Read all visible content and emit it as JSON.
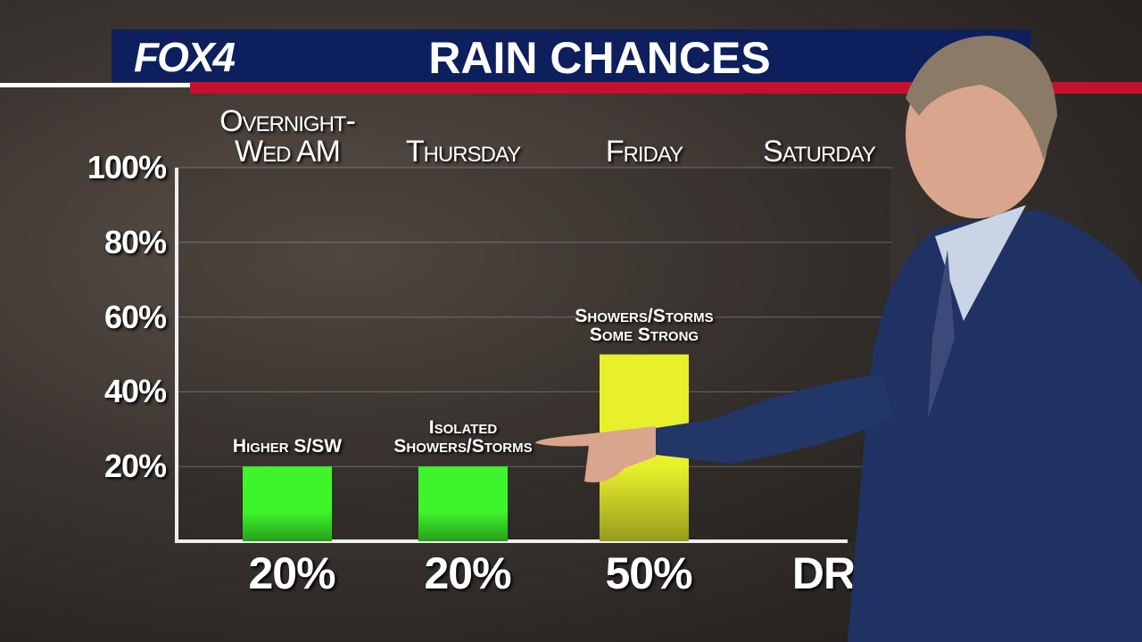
{
  "logo": "FOX4",
  "chart_data": {
    "type": "bar",
    "title": "RAIN CHANCES",
    "categories": [
      "Overnight-\nWed AM",
      "Thursday",
      "Friday",
      "Saturday"
    ],
    "values": [
      20,
      20,
      50,
      null
    ],
    "value_labels": [
      "20%",
      "20%",
      "50%",
      "DR"
    ],
    "annotations": [
      "Higher S/SW",
      "Isolated\nShowers/Storms",
      "Showers/Storms\nSome Strong",
      null
    ],
    "colors": [
      "#3df52a",
      "#3df52a",
      "#e8f02c",
      null
    ],
    "ylim": [
      0,
      100
    ],
    "yticks": [
      {
        "value": 20,
        "label": "20%"
      },
      {
        "value": 40,
        "label": "40%"
      },
      {
        "value": 60,
        "label": "60%"
      },
      {
        "value": 80,
        "label": "80%"
      },
      {
        "value": 100,
        "label": "100%"
      }
    ],
    "grid": true
  }
}
